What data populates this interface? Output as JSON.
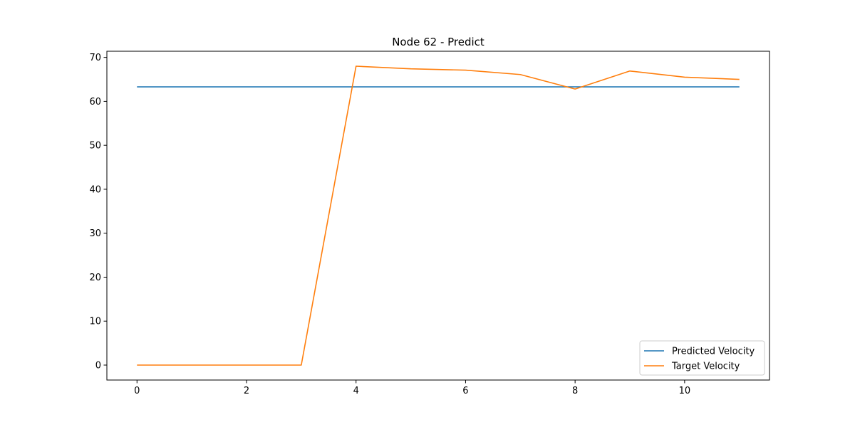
{
  "chart_data": {
    "type": "line",
    "title": "Node 62 - Predict",
    "xlabel": "",
    "ylabel": "",
    "xlim": [
      -0.55,
      11.55
    ],
    "ylim": [
      -3.4,
      71.4
    ],
    "xticks": [
      0,
      2,
      4,
      6,
      8,
      10
    ],
    "yticks": [
      0,
      10,
      20,
      30,
      40,
      50,
      60,
      70
    ],
    "grid": false,
    "legend": "lower right",
    "x": [
      0,
      1,
      2,
      3,
      4,
      5,
      6,
      7,
      8,
      9,
      10,
      11
    ],
    "series": [
      {
        "name": "Predicted Velocity",
        "color": "#1f77b4",
        "values": [
          63.3,
          63.3,
          63.3,
          63.3,
          63.3,
          63.3,
          63.3,
          63.3,
          63.3,
          63.3,
          63.3,
          63.3
        ]
      },
      {
        "name": "Target Velocity",
        "color": "#ff7f0e",
        "values": [
          0,
          0,
          0,
          0,
          68.0,
          67.4,
          67.1,
          66.1,
          62.8,
          66.9,
          65.5,
          65.0
        ]
      }
    ]
  }
}
